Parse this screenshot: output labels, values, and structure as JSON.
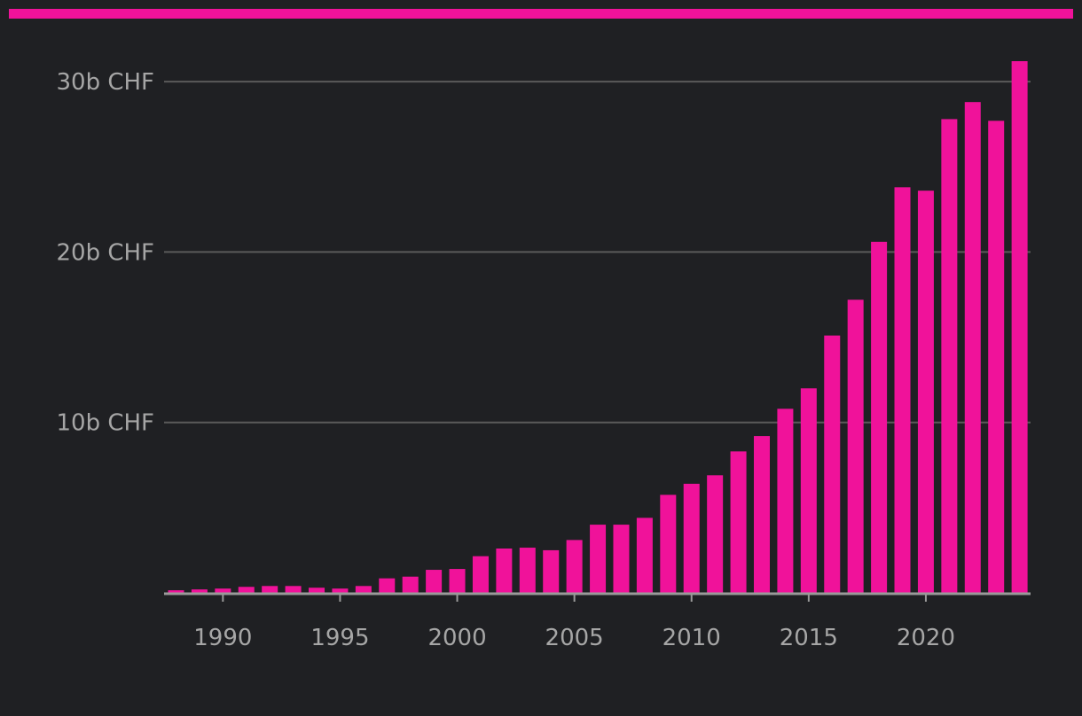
{
  "colors": {
    "background": "#1f2023",
    "accent": "#f0129a",
    "grid": "#5a5a5a",
    "axis": "#9a9a9a",
    "text": "#a6a6a6"
  },
  "chart_data": {
    "type": "bar",
    "title": "",
    "xlabel": "",
    "ylabel": "",
    "unit": "b CHF",
    "x": [
      1988,
      1989,
      1990,
      1991,
      1992,
      1993,
      1994,
      1995,
      1996,
      1997,
      1998,
      1999,
      2000,
      2001,
      2002,
      2003,
      2004,
      2005,
      2006,
      2007,
      2008,
      2009,
      2010,
      2011,
      2012,
      2013,
      2014,
      2015,
      2016,
      2017,
      2018,
      2019,
      2020,
      2021,
      2022,
      2023,
      2024
    ],
    "values": [
      0.15,
      0.2,
      0.25,
      0.35,
      0.4,
      0.4,
      0.3,
      0.25,
      0.4,
      0.85,
      0.95,
      1.35,
      1.4,
      2.15,
      2.6,
      2.65,
      2.5,
      3.1,
      4.0,
      4.0,
      4.4,
      5.75,
      6.4,
      6.9,
      8.3,
      9.2,
      10.8,
      12.0,
      15.1,
      17.2,
      20.6,
      23.8,
      23.6,
      27.8,
      28.8,
      27.7,
      31.2
    ],
    "ylim": [
      0,
      31.5
    ],
    "yticks": [
      {
        "value": 10,
        "label": "10b CHF"
      },
      {
        "value": 20,
        "label": "20b CHF"
      },
      {
        "value": 30,
        "label": "30b CHF"
      }
    ],
    "xticks": [
      {
        "value": 1990,
        "label": "1990"
      },
      {
        "value": 1995,
        "label": "1995"
      },
      {
        "value": 2000,
        "label": "2000"
      },
      {
        "value": 2005,
        "label": "2005"
      },
      {
        "value": 2010,
        "label": "2010"
      },
      {
        "value": 2015,
        "label": "2015"
      },
      {
        "value": 2020,
        "label": "2020"
      }
    ],
    "grid": true,
    "legend": "none"
  }
}
